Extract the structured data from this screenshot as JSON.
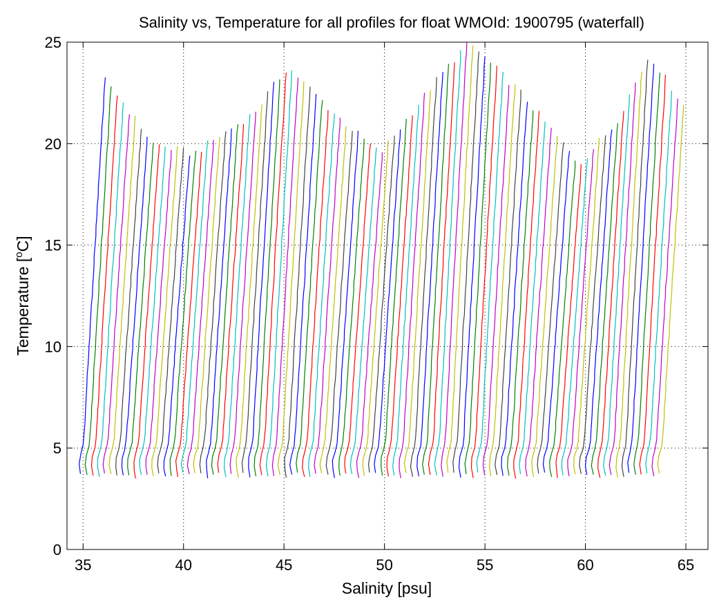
{
  "chart_data": {
    "type": "line",
    "title": "Salinity vs, Temperature for all profiles for float WMOId: 1900795 (waterfall)",
    "xlabel": "Salinity [psu]",
    "ylabel_prefix": "Temperature [",
    "ylabel_sup": "o",
    "ylabel_suffix": "C]",
    "xlim": [
      34.2,
      66.1
    ],
    "ylim": [
      0,
      25
    ],
    "xticks": [
      35,
      40,
      45,
      50,
      55,
      60,
      65
    ],
    "yticks": [
      0,
      5,
      10,
      15,
      20,
      25
    ],
    "grid": true,
    "grid_style": "dotted",
    "series_colors": [
      "#0000ff",
      "#008000",
      "#ff0000",
      "#00bfbf",
      "#bf00bf",
      "#bfbf00",
      "#404040"
    ],
    "waterfall": {
      "profile_count": 97,
      "first_bottom_salinity": 34.9,
      "salinity_offset_per_profile": 0.3,
      "bottom_temperature_range": [
        3.5,
        3.8
      ],
      "surface_temperature_samples": [
        {
          "salinity": 36.2,
          "temperature": 23.1
        },
        {
          "salinity": 38.5,
          "temperature": 20.0
        },
        {
          "salinity": 40.5,
          "temperature": 19.5
        },
        {
          "salinity": 43.5,
          "temperature": 21.5
        },
        {
          "salinity": 45.2,
          "temperature": 23.8
        },
        {
          "salinity": 47.5,
          "temperature": 21.5
        },
        {
          "salinity": 49.8,
          "temperature": 19.5
        },
        {
          "salinity": 52.5,
          "temperature": 23.0
        },
        {
          "salinity": 54.2,
          "temperature": 25.0
        },
        {
          "salinity": 56.8,
          "temperature": 22.5
        },
        {
          "salinity": 59.7,
          "temperature": 19.0
        },
        {
          "salinity": 61.5,
          "temperature": 21.0
        },
        {
          "salinity": 63.2,
          "temperature": 24.4
        },
        {
          "salinity": 65.3,
          "temperature": 21.3
        }
      ]
    }
  }
}
